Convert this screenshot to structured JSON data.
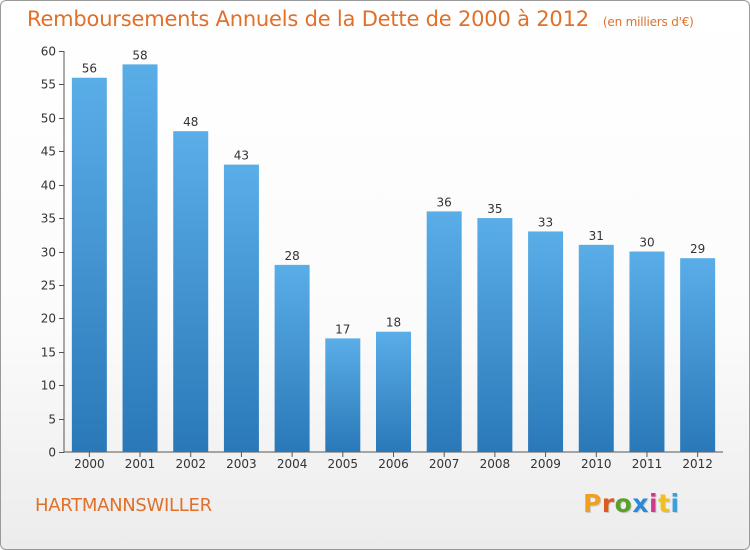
{
  "header": {
    "title": "Remboursements Annuels de la Dette de 2000 à 2012",
    "subtitle": "(en milliers d'€)"
  },
  "footer": {
    "commune": "HARTMANNSWILLER",
    "logo_text": "Proxiti",
    "logo_colors": [
      "#f0a020",
      "#e05a1e",
      "#5aa02a",
      "#2a8ad8",
      "#d03a8a",
      "#f0c020",
      "#3aa0d8"
    ]
  },
  "chart_data": {
    "type": "bar",
    "categories": [
      "2000",
      "2001",
      "2002",
      "2003",
      "2004",
      "2005",
      "2006",
      "2007",
      "2008",
      "2009",
      "2010",
      "2011",
      "2012"
    ],
    "values": [
      56,
      58,
      48,
      43,
      28,
      17,
      18,
      36,
      35,
      33,
      31,
      30,
      29
    ],
    "ylim": [
      0,
      60
    ],
    "yticks": [
      0,
      5,
      10,
      15,
      20,
      25,
      30,
      35,
      40,
      45,
      50,
      55,
      60
    ],
    "grid": false,
    "bar_color_top": "#5aaee8",
    "bar_color_bottom": "#2a78b8",
    "data_labels": true
  }
}
